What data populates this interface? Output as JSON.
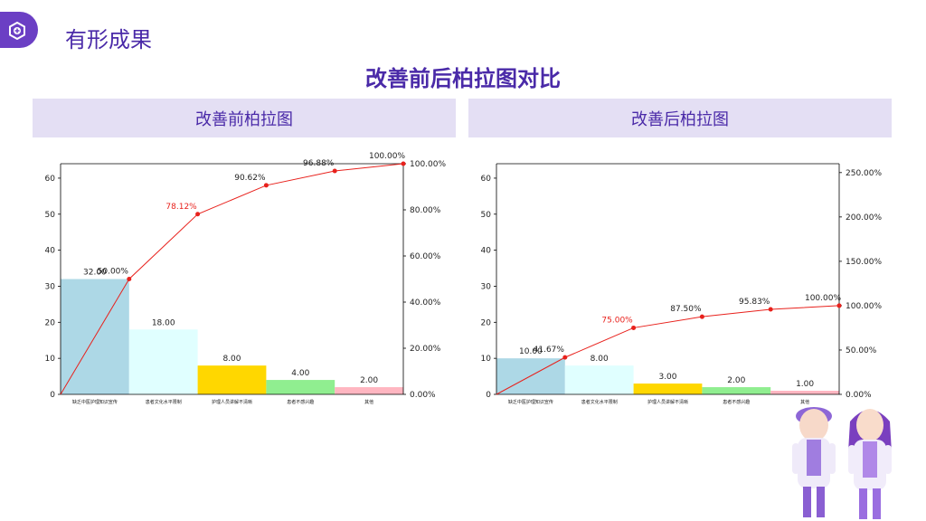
{
  "header": {
    "title": "有形成果"
  },
  "main_title": "改善前后柏拉图对比",
  "panels": [
    {
      "label": "改善前柏拉图"
    },
    {
      "label": "改善后柏拉图"
    }
  ],
  "colors": {
    "accent": "#6b3fc4",
    "title": "#4a2aa8",
    "panel_bg": "#e4dff4",
    "line": "#e8211c"
  },
  "chart_data": [
    {
      "type": "bar",
      "title": "改善前柏拉图",
      "categories": [
        "缺乏中医护理知识宣传",
        "患者文化水平限制",
        "护理人员讲解不清晰",
        "患者不感兴趣",
        "其他"
      ],
      "values": [
        32,
        18,
        8,
        4,
        2
      ],
      "value_labels": [
        "32.00",
        "18.00",
        "8.00",
        "4.00",
        "2.00"
      ],
      "cumulative_percent": [
        50.0,
        78.12,
        90.62,
        96.88,
        100.0
      ],
      "cumulative_labels": [
        "50.00%",
        "78.12%",
        "90.62%",
        "96.88%",
        "100.00%"
      ],
      "highlight_index": 1,
      "ylim": [
        0,
        64
      ],
      "yticks": [
        0,
        10,
        20,
        30,
        40,
        50,
        60
      ],
      "y2lim": [
        0,
        100
      ],
      "y2ticks": [
        0,
        20,
        40,
        60,
        80,
        100
      ],
      "y2tick_labels": [
        "0.00%",
        "20.00%",
        "40.00%",
        "60.00%",
        "80.00%",
        "100.00%"
      ],
      "bar_colors": [
        "#add8e6",
        "#e0ffff",
        "#ffd700",
        "#90ee90",
        "#ffb6c1"
      ]
    },
    {
      "type": "bar",
      "title": "改善后柏拉图",
      "categories": [
        "缺乏中医护理知识宣传",
        "患者文化水平限制",
        "护理人员讲解不清晰",
        "患者不感兴趣",
        "其他"
      ],
      "values": [
        10,
        8,
        3,
        2,
        1
      ],
      "value_labels": [
        "10.00",
        "8.00",
        "3.00",
        "2.00",
        "1.00"
      ],
      "cumulative_percent": [
        41.67,
        75.0,
        87.5,
        95.83,
        100.0
      ],
      "cumulative_labels": [
        "41.67%",
        "75.00%",
        "87.50%",
        "95.83%",
        "100.00%"
      ],
      "highlight_index": 1,
      "ylim": [
        0,
        64
      ],
      "yticks": [
        0,
        10,
        20,
        30,
        40,
        50,
        60
      ],
      "y2lim": [
        0,
        260
      ],
      "y2ticks": [
        0,
        50,
        100,
        150,
        200,
        250
      ],
      "y2tick_labels": [
        "0.00%",
        "50.00%",
        "100.00%",
        "150.00%",
        "200.00%",
        "250.00%"
      ],
      "bar_colors": [
        "#add8e6",
        "#e0ffff",
        "#ffd700",
        "#90ee90",
        "#ffb6c1"
      ]
    }
  ]
}
